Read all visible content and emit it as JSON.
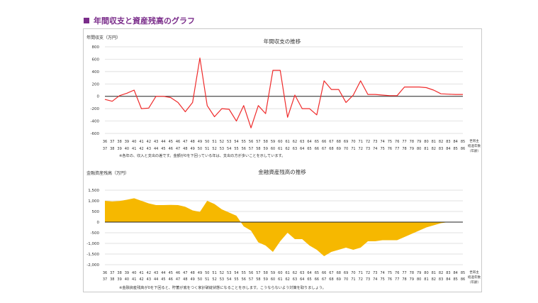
{
  "page": {
    "heading": "年間収支と資産残高のグラフ",
    "colors": {
      "heading": "#7a2c8a",
      "line": "#ef2b2b",
      "area": "#f6b800"
    }
  },
  "chart_data": [
    {
      "type": "line",
      "title": "年間収支の推移",
      "ylabel": "年間収支（万円）",
      "ylim": [
        -600,
        800
      ],
      "yticks": [
        800,
        600,
        400,
        200,
        0,
        -200,
        -400,
        -600
      ],
      "x_row1": [
        "36",
        "37",
        "38",
        "39",
        "40",
        "41",
        "42",
        "43",
        "44",
        "45",
        "46",
        "47",
        "48",
        "49",
        "50",
        "51",
        "52",
        "53",
        "54",
        "55",
        "56",
        "57",
        "58",
        "59",
        "60",
        "61",
        "62",
        "63",
        "64",
        "65",
        "66",
        "67",
        "68",
        "69",
        "70",
        "71",
        "72",
        "73",
        "74",
        "75",
        "76",
        "77",
        "78",
        "79",
        "80",
        "81",
        "82",
        "83",
        "84",
        "85"
      ],
      "x_row2": [
        "37",
        "38",
        "39",
        "40",
        "41",
        "42",
        "43",
        "44",
        "45",
        "46",
        "47",
        "48",
        "49",
        "50",
        "51",
        "52",
        "53",
        "54",
        "55",
        "56",
        "57",
        "58",
        "59",
        "60",
        "61",
        "62",
        "63",
        "64",
        "65",
        "66",
        "67",
        "68",
        "69",
        "70",
        "71",
        "72",
        "73",
        "74",
        "75",
        "76",
        "77",
        "78",
        "79",
        "80",
        "81",
        "82",
        "83",
        "84",
        "85",
        "86"
      ],
      "x_unit_top": "世帯主",
      "x_unit_mid": "経過年数",
      "x_unit_bot": "（年齢）",
      "series": [
        {
          "values": [
            -50,
            -80,
            10,
            50,
            100,
            -200,
            -190,
            0,
            0,
            -20,
            -100,
            -250,
            -100,
            620,
            -150,
            -330,
            -200,
            -210,
            -400,
            -150,
            -510,
            -150,
            -280,
            420,
            420,
            -340,
            20,
            -200,
            -200,
            -300,
            250,
            110,
            110,
            -100,
            20,
            250,
            30,
            30,
            20,
            10,
            10,
            150,
            150,
            150,
            140,
            100,
            40,
            35,
            30,
            30
          ]
        }
      ],
      "note": "※各年の、収入と支出の差です。金額が0を下回っている年は、支出の方が多いことを示しています。"
    },
    {
      "type": "area",
      "title": "金融資産残高の推移",
      "ylabel": "金融資産残高（万円）",
      "ylim": [
        -2000,
        1500
      ],
      "yticks": [
        "1,500",
        "1,000",
        "500",
        "0",
        "-500",
        "-1,000",
        "-1,500",
        "-2,000"
      ],
      "x_row1": [
        "36",
        "37",
        "38",
        "39",
        "40",
        "41",
        "42",
        "43",
        "44",
        "45",
        "46",
        "47",
        "48",
        "49",
        "50",
        "51",
        "52",
        "53",
        "54",
        "55",
        "56",
        "57",
        "58",
        "59",
        "60",
        "61",
        "62",
        "63",
        "64",
        "65",
        "66",
        "67",
        "68",
        "69",
        "70",
        "71",
        "72",
        "73",
        "74",
        "75",
        "76",
        "77",
        "78",
        "79",
        "80",
        "81",
        "82",
        "83",
        "84",
        "85"
      ],
      "x_row2": [
        "37",
        "38",
        "39",
        "40",
        "41",
        "42",
        "43",
        "44",
        "45",
        "46",
        "47",
        "48",
        "49",
        "50",
        "51",
        "52",
        "53",
        "54",
        "55",
        "56",
        "57",
        "58",
        "59",
        "60",
        "61",
        "62",
        "63",
        "64",
        "65",
        "66",
        "67",
        "68",
        "69",
        "70",
        "71",
        "72",
        "73",
        "74",
        "75",
        "76",
        "77",
        "78",
        "79",
        "80",
        "81",
        "82",
        "83",
        "84",
        "85",
        "86"
      ],
      "x_unit_top": "世帯主",
      "x_unit_mid": "経過年数",
      "x_unit_bot": "（年齢）",
      "series": [
        {
          "values": [
            1000,
            970,
            990,
            1050,
            1120,
            1000,
            880,
            800,
            800,
            810,
            800,
            720,
            550,
            480,
            1000,
            850,
            600,
            450,
            300,
            -200,
            -400,
            -950,
            -1100,
            -1400,
            -900,
            -500,
            -800,
            -800,
            -1100,
            -1300,
            -1600,
            -1400,
            -1300,
            -1200,
            -1300,
            -1200,
            -900,
            -900,
            -850,
            -850,
            -850,
            -700,
            -550,
            -400,
            -250,
            -150,
            -50,
            0,
            0,
            0
          ]
        }
      ],
      "note": "※金融資産残高が0を下回ると、貯蓄が底をつく家計破綻状態になることを示します。こうならないよう対策を取りましょう。"
    }
  ]
}
